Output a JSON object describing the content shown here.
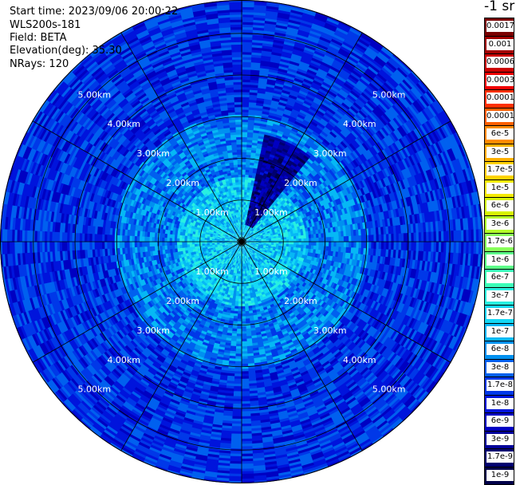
{
  "header": {
    "start_time": "Start time: 2023/09/06 20:00:22",
    "instrument": "WLS200s-181",
    "field": "Field: BETA",
    "elevation": "Elevation(deg): 35.30",
    "nrays": "NRays: 120"
  },
  "colorbar": {
    "title": "-1 sr",
    "levels": [
      "0.0017",
      "0.001",
      "0.0006",
      "0.0003",
      "0.00017",
      "0.0001",
      "6e-5",
      "3e-5",
      "1.7e-5",
      "1e-5",
      "6e-6",
      "3e-6",
      "1.7e-6",
      "1e-6",
      "6e-7",
      "3e-7",
      "1.7e-7",
      "1e-7",
      "6e-8",
      "3e-8",
      "1.7e-8",
      "1e-8",
      "6e-9",
      "3e-9",
      "1.7e-9",
      "1e-9"
    ],
    "colors": [
      "#7a0000",
      "#a30000",
      "#cc0000",
      "#f20000",
      "#ff3000",
      "#ff6000",
      "#ff8c00",
      "#ffb000",
      "#ffd200",
      "#f5ea00",
      "#d8f500",
      "#b4ff2a",
      "#88ff5a",
      "#5cff88",
      "#3cffb8",
      "#28f0e0",
      "#14d8f5",
      "#06b8f5",
      "#0090f0",
      "#0060ef",
      "#0038e8",
      "#0014dc",
      "#0000c2",
      "#00009a",
      "#000070",
      "#00004a"
    ]
  },
  "chart_data": {
    "type": "heatmap",
    "title": "",
    "projection": "polar PPI scan",
    "field": "BETA",
    "units": "sr-1",
    "elevation_deg": 35.3,
    "n_rays": 120,
    "range_rings_km": [
      1,
      2,
      3,
      4,
      5
    ],
    "range_labels": [
      "1.00km",
      "2.00km",
      "3.00km",
      "4.00km",
      "5.00km"
    ],
    "max_range_km": 5.8,
    "spoke_azimuths_deg": [
      0,
      30,
      60,
      90,
      120,
      150,
      180,
      210,
      240,
      270,
      300,
      330
    ],
    "value_range": [
      1e-09,
      0.0017
    ],
    "typical_values": {
      "near_range_0_1.5km": 1.7e-07,
      "mid_range_1.5_3km": 6e-08,
      "far_range_3_5.8km": 2e-08,
      "plume_azimuth_15_35deg_0.5_2.5km": 4e-09
    }
  }
}
